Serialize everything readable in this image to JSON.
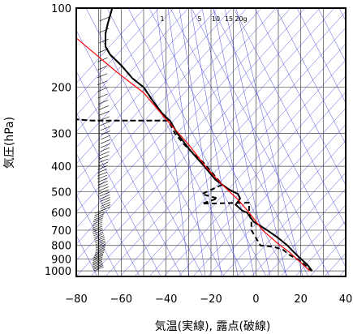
{
  "chart_data": {
    "type": "line",
    "title": "",
    "xlabel": "気温(実線), 露点(破線)",
    "ylabel": "気圧(hPa)",
    "x_range": [
      -80,
      40
    ],
    "y_range": [
      1050,
      100
    ],
    "y_scale": "log",
    "grid": true,
    "x_ticks": [
      -80,
      -60,
      -40,
      -20,
      0,
      20,
      40
    ],
    "y_ticks": [
      100,
      200,
      300,
      400,
      500,
      600,
      700,
      800,
      900,
      1000
    ],
    "mixing_ratio_labels": [
      "1",
      "5",
      "10",
      "15",
      "20g"
    ],
    "series": [
      {
        "style": "solid",
        "color": "#000000",
        "points": [
          [
            -64,
            100
          ],
          [
            -66,
            115
          ],
          [
            -67,
            125
          ],
          [
            -67,
            135
          ],
          [
            -67,
            140
          ],
          [
            -65,
            150
          ],
          [
            -60,
            165
          ],
          [
            -55,
            185
          ],
          [
            -50,
            200
          ],
          [
            -46,
            225
          ],
          [
            -42,
            250
          ],
          [
            -38,
            270
          ],
          [
            -35,
            300
          ],
          [
            -29,
            350
          ],
          [
            -23,
            400
          ],
          [
            -18,
            450
          ],
          [
            -12,
            490
          ],
          [
            -8,
            510
          ],
          [
            -7,
            530
          ],
          [
            -9,
            560
          ],
          [
            -6,
            590
          ],
          [
            -4,
            600
          ],
          [
            -1,
            650
          ],
          [
            5,
            700
          ],
          [
            10,
            750
          ],
          [
            14,
            800
          ],
          [
            17,
            850
          ],
          [
            20,
            900
          ],
          [
            23,
            950
          ],
          [
            25,
            1000
          ]
        ]
      },
      {
        "style": "dashed",
        "color": "#000000",
        "points": [
          [
            -64,
            100
          ],
          [
            -66,
            115
          ],
          [
            -67,
            125
          ],
          [
            -67,
            135
          ],
          [
            -67,
            140
          ],
          [
            -65,
            150
          ],
          [
            -60,
            165
          ],
          [
            -55,
            185
          ],
          [
            -50,
            200
          ],
          [
            -46,
            225
          ],
          [
            -42,
            250
          ],
          [
            -39,
            268
          ],
          [
            -73,
            268
          ],
          [
            -80,
            265
          ],
          [
            -73,
            268
          ],
          [
            -39,
            268
          ],
          [
            -36,
            300
          ],
          [
            -32,
            330
          ],
          [
            -29,
            350
          ],
          [
            -23,
            390
          ],
          [
            -15,
            470
          ],
          [
            -24,
            510
          ],
          [
            -17,
            530
          ],
          [
            -24,
            555
          ],
          [
            -3,
            550
          ],
          [
            -3,
            600
          ],
          [
            -2,
            650
          ],
          [
            -2,
            700
          ],
          [
            2,
            800
          ],
          [
            8,
            810
          ],
          [
            12,
            830
          ],
          [
            15,
            870
          ],
          [
            20,
            920
          ],
          [
            23,
            970
          ],
          [
            25,
            1000
          ]
        ]
      },
      {
        "style": "solid",
        "color": "#ff0000",
        "points": [
          [
            -80,
            130
          ],
          [
            -62,
            175
          ],
          [
            -50,
            210
          ],
          [
            -40,
            265
          ],
          [
            -30,
            330
          ],
          [
            -22,
            405
          ],
          [
            -15,
            470
          ],
          [
            -8,
            535
          ],
          [
            -3,
            600
          ],
          [
            3,
            700
          ],
          [
            10,
            790
          ],
          [
            15,
            850
          ],
          [
            20,
            930
          ],
          [
            24,
            1000
          ]
        ]
      }
    ]
  }
}
